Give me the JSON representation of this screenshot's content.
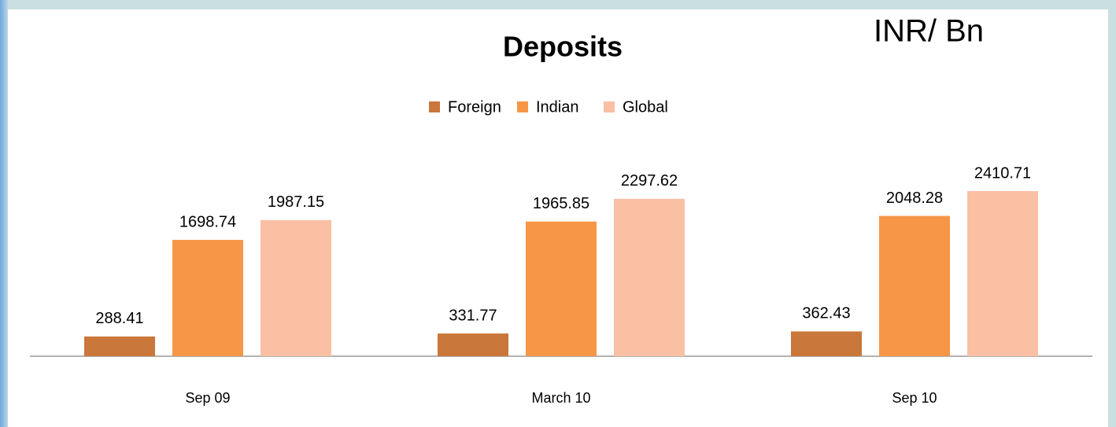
{
  "chart_data": {
    "type": "bar",
    "title": "Deposits",
    "unit_note": "INR/ Bn",
    "categories": [
      "Sep 09",
      "March 10",
      "Sep 10"
    ],
    "series": [
      {
        "name": "Foreign",
        "color": "#c9773a",
        "values": [
          288.41,
          331.77,
          362.43
        ]
      },
      {
        "name": "Indian",
        "color": "#f79646",
        "values": [
          1698.74,
          1965.85,
          2048.28
        ]
      },
      {
        "name": "Global",
        "color": "#f9c0a4",
        "values": [
          1987.15,
          2297.62,
          2410.71
        ]
      }
    ],
    "legend": "top"
  }
}
